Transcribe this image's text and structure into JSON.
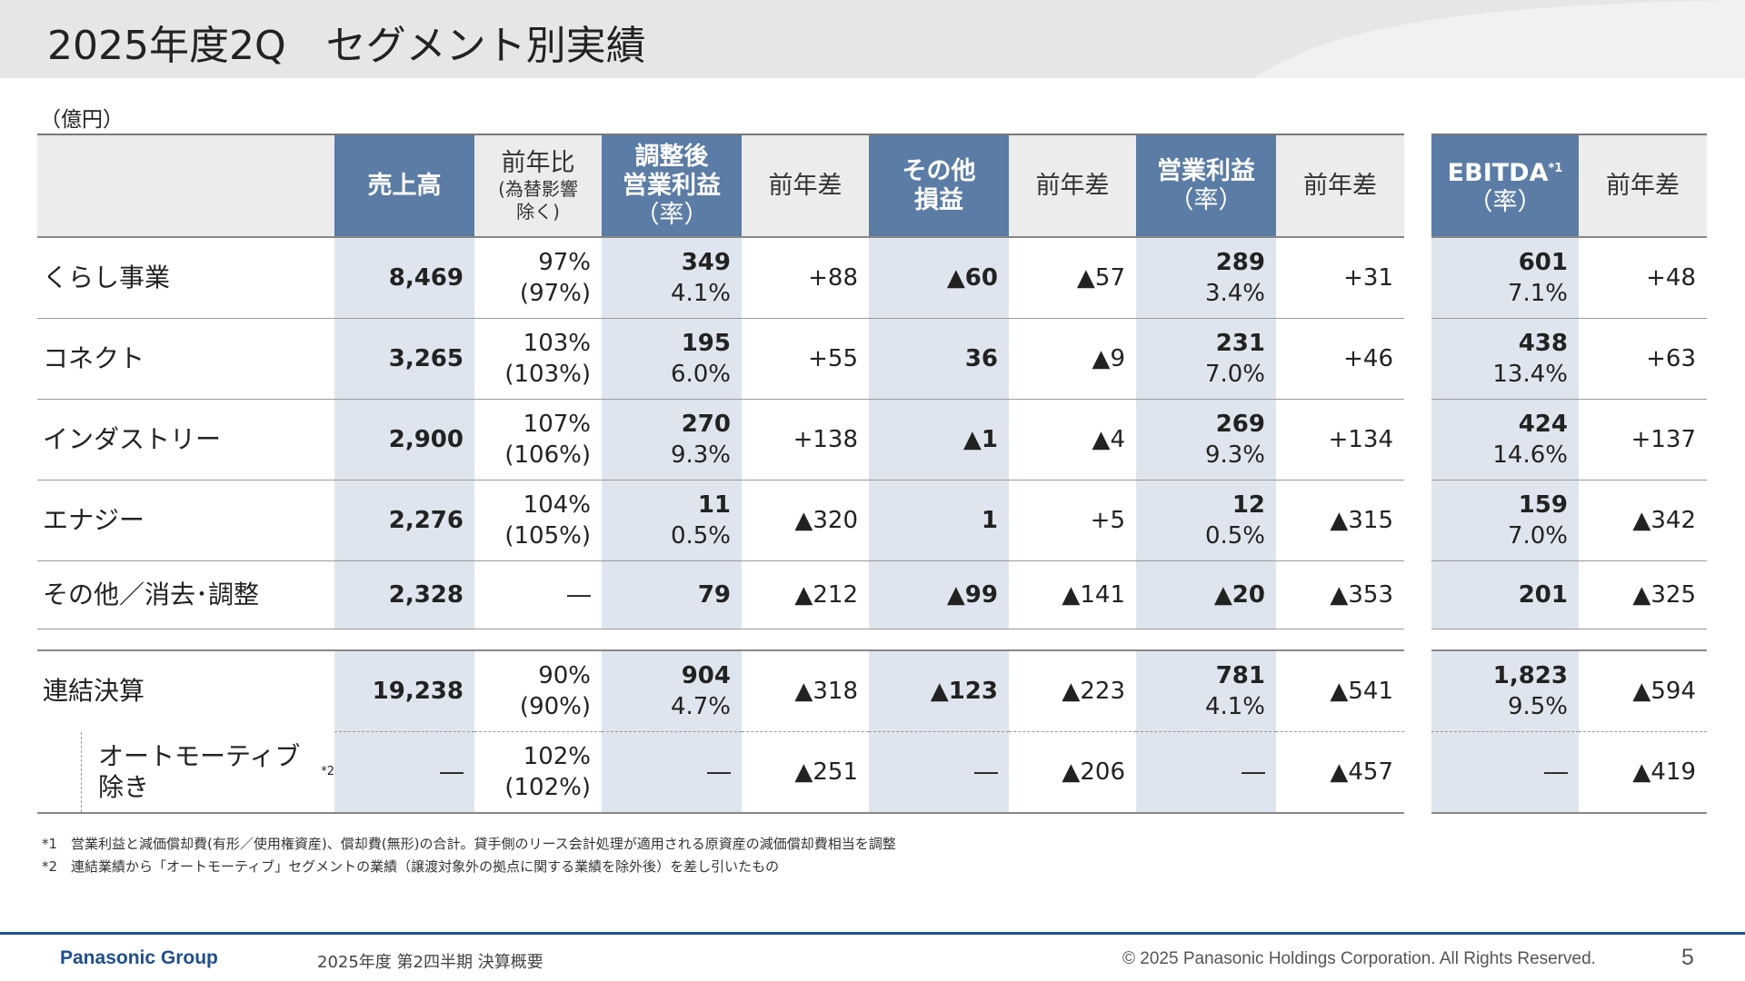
{
  "header": {
    "title": "2025年度2Q　セグメント別実績"
  },
  "unit": "（億円）",
  "columns": {
    "sales": "売上高",
    "yoy_line1": "前年比",
    "yoy_line2": "(為替影響",
    "yoy_line3": "除く)",
    "adj_op_line1": "調整後",
    "adj_op_line2": "営業利益",
    "adj_op_line3": "（率）",
    "diff1": "前年差",
    "other_line1": "その他",
    "other_line2": "損益",
    "diff2": "前年差",
    "op_line1": "営業利益",
    "op_line2": "（率）",
    "diff3": "前年差",
    "ebitda_line1": "EBITDA",
    "ebitda_sup": "*1",
    "ebitda_line2": "（率）",
    "diff4": "前年差"
  },
  "rows": [
    {
      "name": "くらし事業",
      "sales": "8,469",
      "yoy": "97%",
      "yoy_fx": "(97%)",
      "adj_op": "349",
      "adj_rate": "4.1%",
      "diff1": "+88",
      "other": "▲60",
      "diff2": "▲57",
      "op": "289",
      "op_rate": "3.4%",
      "diff3": "+31",
      "ebitda": "601",
      "ebitda_rate": "7.1%",
      "diff4": "+48"
    },
    {
      "name": "コネクト",
      "sales": "3,265",
      "yoy": "103%",
      "yoy_fx": "(103%)",
      "adj_op": "195",
      "adj_rate": "6.0%",
      "diff1": "+55",
      "other": "36",
      "diff2": "▲9",
      "op": "231",
      "op_rate": "7.0%",
      "diff3": "+46",
      "ebitda": "438",
      "ebitda_rate": "13.4%",
      "diff4": "+63"
    },
    {
      "name": "インダストリー",
      "sales": "2,900",
      "yoy": "107%",
      "yoy_fx": "(106%)",
      "adj_op": "270",
      "adj_rate": "9.3%",
      "diff1": "+138",
      "other": "▲1",
      "diff2": "▲4",
      "op": "269",
      "op_rate": "9.3%",
      "diff3": "+134",
      "ebitda": "424",
      "ebitda_rate": "14.6%",
      "diff4": "+137"
    },
    {
      "name": "エナジー",
      "sales": "2,276",
      "yoy": "104%",
      "yoy_fx": "(105%)",
      "adj_op": "11",
      "adj_rate": "0.5%",
      "diff1": "▲320",
      "other": "1",
      "diff2": "+5",
      "op": "12",
      "op_rate": "0.5%",
      "diff3": "▲315",
      "ebitda": "159",
      "ebitda_rate": "7.0%",
      "diff4": "▲342"
    },
    {
      "name": "その他／消去･調整",
      "sales": "2,328",
      "yoy": "―",
      "adj_op": "79",
      "diff1": "▲212",
      "other": "▲99",
      "diff2": "▲141",
      "op": "▲20",
      "diff3": "▲353",
      "ebitda": "201",
      "diff4": "▲325"
    }
  ],
  "total": {
    "name": "連結決算",
    "sales": "19,238",
    "yoy": "90%",
    "yoy_fx": "(90%)",
    "adj_op": "904",
    "adj_rate": "4.7%",
    "diff1": "▲318",
    "other": "▲123",
    "diff2": "▲223",
    "op": "781",
    "op_rate": "4.1%",
    "diff3": "▲541",
    "ebitda": "1,823",
    "ebitda_rate": "9.5%",
    "diff4": "▲594"
  },
  "excl_auto": {
    "name": "オートモーティブ除き",
    "name_sup": "*2",
    "sales": "―",
    "yoy": "102%",
    "yoy_fx": "(102%)",
    "adj_op": "―",
    "diff1": "▲251",
    "other": "―",
    "diff2": "▲206",
    "op": "―",
    "diff3": "▲457",
    "ebitda": "―",
    "diff4": "▲419"
  },
  "footnotes": [
    "*1　営業利益と減価償却費(有形／使用権資産)、償却費(無形)の合計。貸手側のリース会計処理が適用される原資産の減価償却費相当を調整",
    "*2　連結業績から「オートモーティブ」セグメントの業績（譲渡対象外の拠点に関する業績を除外後）を差し引いたもの"
  ],
  "footer": {
    "brand": "Panasonic Group",
    "subtitle": "2025年度 第2四半期 決算概要",
    "copyright": "© 2025 Panasonic Holdings Corporation. All Rights Reserved.",
    "page": "5"
  },
  "colors": {
    "header_blue": "#5b7ca5",
    "highlight_col": "#dfe5ee",
    "brand_blue": "#1f4e8c"
  }
}
